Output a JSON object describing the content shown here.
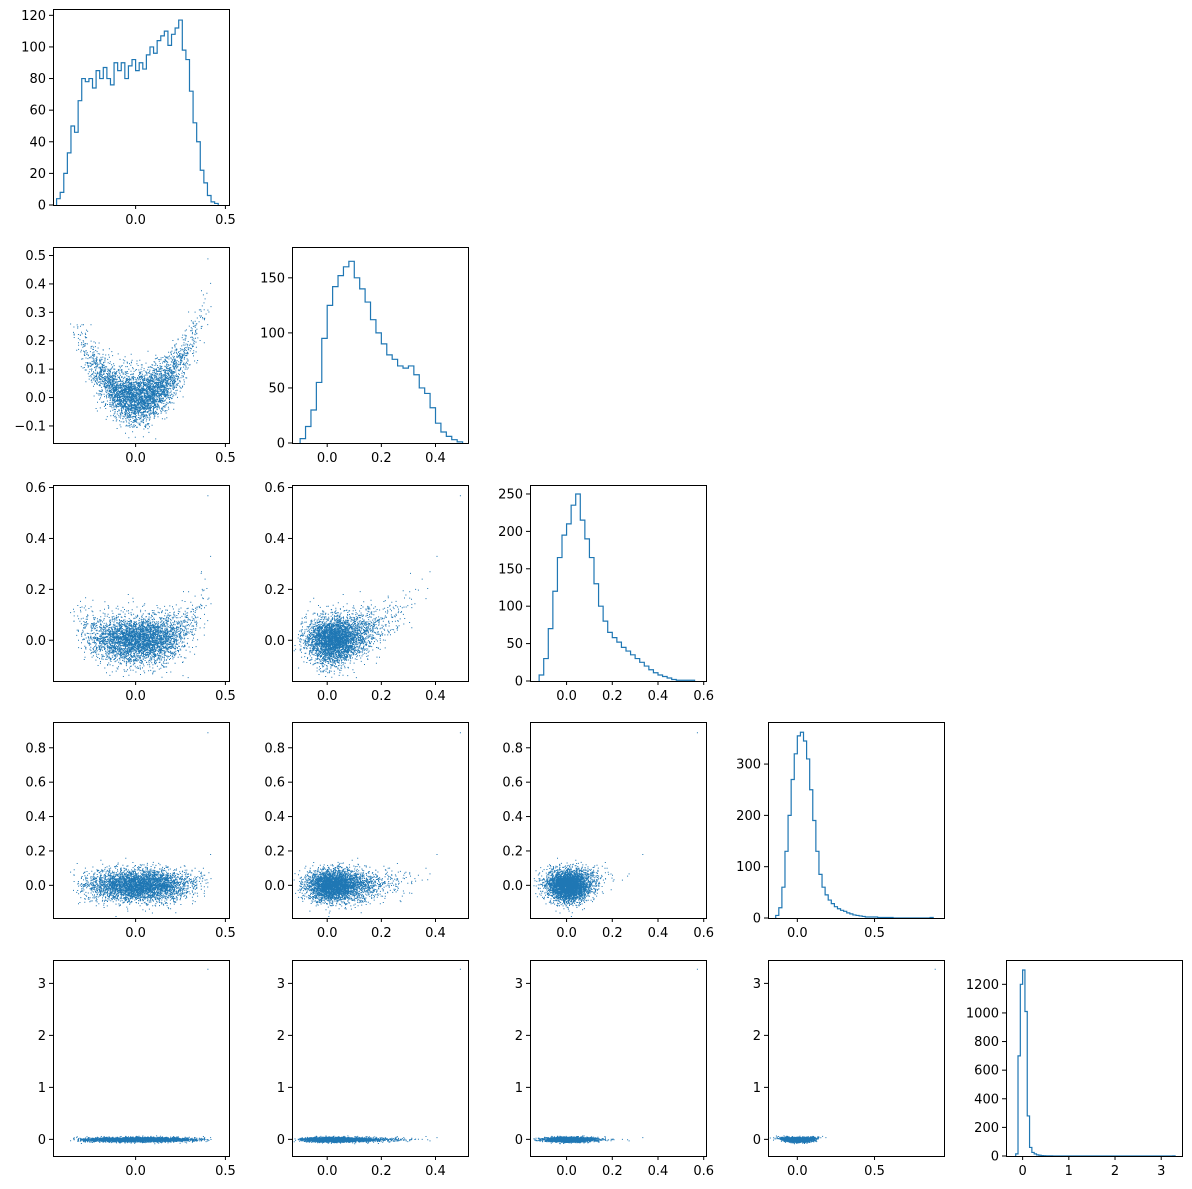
{
  "figure": {
    "type": "corner",
    "grid": false,
    "series_color": "#1f77b4",
    "n_vars": 5
  },
  "chart_data": [
    {
      "type": "histogram",
      "panel": "hist-0",
      "row": 0,
      "col": 0,
      "xlim": [
        -0.46,
        0.52
      ],
      "ylim": [
        0,
        124
      ],
      "xticks": [
        0.0,
        0.5
      ],
      "xtick_labels": [
        "0.0",
        "0.5"
      ],
      "yticks": [
        0,
        20,
        40,
        60,
        80,
        100,
        120
      ],
      "ytick_labels": [
        "0",
        "20",
        "40",
        "60",
        "80",
        "100",
        "120"
      ],
      "bins": [
        -0.44,
        -0.42,
        -0.4,
        -0.38,
        -0.36,
        -0.34,
        -0.32,
        -0.3,
        -0.28,
        -0.26,
        -0.24,
        -0.22,
        -0.2,
        -0.18,
        -0.16,
        -0.14,
        -0.12,
        -0.1,
        -0.08,
        -0.06,
        -0.04,
        -0.02,
        0.0,
        0.02,
        0.04,
        0.06,
        0.08,
        0.1,
        0.12,
        0.14,
        0.16,
        0.18,
        0.2,
        0.22,
        0.24,
        0.26,
        0.28,
        0.3,
        0.32,
        0.34,
        0.36,
        0.38,
        0.4,
        0.42,
        0.44,
        0.46
      ],
      "counts": [
        4,
        8,
        20,
        33,
        50,
        46,
        66,
        80,
        78,
        80,
        74,
        85,
        80,
        87,
        80,
        76,
        90,
        85,
        90,
        80,
        88,
        92,
        85,
        90,
        86,
        95,
        100,
        96,
        104,
        107,
        110,
        101,
        108,
        112,
        117,
        98,
        92,
        72,
        52,
        40,
        22,
        14,
        6,
        2,
        1
      ]
    },
    {
      "type": "scatter",
      "panel": "scatter-1-0",
      "row": 1,
      "col": 0,
      "xlim": [
        -0.46,
        0.52
      ],
      "ylim": [
        -0.16,
        0.53
      ],
      "xticks": [
        0.0,
        0.5
      ],
      "xtick_labels": [
        "0.0",
        "0.5"
      ],
      "yticks": [
        -0.1,
        0.0,
        0.1,
        0.2,
        0.3,
        0.4,
        0.5
      ],
      "ytick_labels": [
        "−0.1",
        "0.0",
        "0.1",
        "0.2",
        "0.3",
        "0.4",
        "0.5"
      ],
      "x_var": 0,
      "y_var": 1
    },
    {
      "type": "histogram",
      "panel": "hist-1",
      "row": 1,
      "col": 1,
      "xlim": [
        -0.13,
        0.52
      ],
      "ylim": [
        0,
        178
      ],
      "xticks": [
        0.0,
        0.2,
        0.4
      ],
      "xtick_labels": [
        "0.0",
        "0.2",
        "0.4"
      ],
      "yticks": [
        0,
        50,
        100,
        150
      ],
      "ytick_labels": [
        "0",
        "50",
        "100",
        "150"
      ],
      "bins": [
        -0.1,
        -0.08,
        -0.06,
        -0.04,
        -0.02,
        0.0,
        0.02,
        0.04,
        0.06,
        0.08,
        0.1,
        0.12,
        0.14,
        0.16,
        0.18,
        0.2,
        0.22,
        0.24,
        0.26,
        0.28,
        0.3,
        0.32,
        0.34,
        0.36,
        0.38,
        0.4,
        0.42,
        0.44,
        0.46,
        0.48,
        0.5
      ],
      "counts": [
        4,
        15,
        30,
        55,
        95,
        125,
        142,
        152,
        160,
        165,
        150,
        140,
        128,
        112,
        100,
        90,
        80,
        76,
        70,
        68,
        70,
        62,
        50,
        45,
        32,
        18,
        10,
        6,
        3,
        1
      ]
    },
    {
      "type": "scatter",
      "panel": "scatter-2-0",
      "row": 2,
      "col": 0,
      "xlim": [
        -0.46,
        0.52
      ],
      "ylim": [
        -0.16,
        0.61
      ],
      "xticks": [
        0.0,
        0.5
      ],
      "xtick_labels": [
        "0.0",
        "0.5"
      ],
      "yticks": [
        0.0,
        0.2,
        0.4,
        0.6
      ],
      "ytick_labels": [
        "0.0",
        "0.2",
        "0.4",
        "0.6"
      ],
      "x_var": 0,
      "y_var": 2
    },
    {
      "type": "scatter",
      "panel": "scatter-2-1",
      "row": 2,
      "col": 1,
      "xlim": [
        -0.13,
        0.52
      ],
      "ylim": [
        -0.16,
        0.61
      ],
      "xticks": [
        0.0,
        0.2,
        0.4
      ],
      "xtick_labels": [
        "0.0",
        "0.2",
        "0.4"
      ],
      "yticks": [
        0.0,
        0.2,
        0.4,
        0.6
      ],
      "ytick_labels": [
        "0.0",
        "0.2",
        "0.4",
        "0.6"
      ],
      "x_var": 1,
      "y_var": 2
    },
    {
      "type": "histogram",
      "panel": "hist-2",
      "row": 2,
      "col": 2,
      "xlim": [
        -0.16,
        0.61
      ],
      "ylim": [
        0,
        262
      ],
      "xticks": [
        0.0,
        0.2,
        0.4,
        0.6
      ],
      "xtick_labels": [
        "0.0",
        "0.2",
        "0.4",
        "0.6"
      ],
      "yticks": [
        0,
        50,
        100,
        150,
        200,
        250
      ],
      "ytick_labels": [
        "0",
        "50",
        "100",
        "150",
        "200",
        "250"
      ],
      "bins": [
        -0.12,
        -0.1,
        -0.08,
        -0.06,
        -0.04,
        -0.02,
        0.0,
        0.02,
        0.04,
        0.06,
        0.08,
        0.1,
        0.12,
        0.14,
        0.16,
        0.18,
        0.2,
        0.22,
        0.24,
        0.26,
        0.28,
        0.3,
        0.32,
        0.34,
        0.36,
        0.38,
        0.4,
        0.42,
        0.44,
        0.46,
        0.48,
        0.5,
        0.52,
        0.54,
        0.56
      ],
      "counts": [
        8,
        30,
        70,
        120,
        165,
        195,
        210,
        235,
        250,
        215,
        190,
        165,
        130,
        100,
        80,
        65,
        58,
        52,
        45,
        40,
        35,
        30,
        25,
        20,
        15,
        11,
        8,
        6,
        4,
        2,
        1,
        1,
        1,
        1
      ]
    },
    {
      "type": "scatter",
      "panel": "scatter-3-0",
      "row": 3,
      "col": 0,
      "xlim": [
        -0.46,
        0.52
      ],
      "ylim": [
        -0.19,
        0.95
      ],
      "xticks": [
        0.0,
        0.5
      ],
      "xtick_labels": [
        "0.0",
        "0.5"
      ],
      "yticks": [
        0.0,
        0.2,
        0.4,
        0.6,
        0.8
      ],
      "ytick_labels": [
        "0.0",
        "0.2",
        "0.4",
        "0.6",
        "0.8"
      ],
      "x_var": 0,
      "y_var": 3
    },
    {
      "type": "scatter",
      "panel": "scatter-3-1",
      "row": 3,
      "col": 1,
      "xlim": [
        -0.13,
        0.52
      ],
      "ylim": [
        -0.19,
        0.95
      ],
      "xticks": [
        0.0,
        0.2,
        0.4
      ],
      "xtick_labels": [
        "0.0",
        "0.2",
        "0.4"
      ],
      "yticks": [
        0.0,
        0.2,
        0.4,
        0.6,
        0.8
      ],
      "ytick_labels": [
        "0.0",
        "0.2",
        "0.4",
        "0.6",
        "0.8"
      ],
      "x_var": 1,
      "y_var": 3
    },
    {
      "type": "scatter",
      "panel": "scatter-3-2",
      "row": 3,
      "col": 2,
      "xlim": [
        -0.16,
        0.61
      ],
      "ylim": [
        -0.19,
        0.95
      ],
      "xticks": [
        0.0,
        0.2,
        0.4,
        0.6
      ],
      "xtick_labels": [
        "0.0",
        "0.2",
        "0.4",
        "0.6"
      ],
      "yticks": [
        0.0,
        0.2,
        0.4,
        0.6,
        0.8
      ],
      "ytick_labels": [
        "0.0",
        "0.2",
        "0.4",
        "0.6",
        "0.8"
      ],
      "x_var": 2,
      "y_var": 3
    },
    {
      "type": "histogram",
      "panel": "hist-3",
      "row": 3,
      "col": 3,
      "xlim": [
        -0.19,
        0.95
      ],
      "ylim": [
        0,
        382
      ],
      "xticks": [
        0.0,
        0.5
      ],
      "xtick_labels": [
        "0.0",
        "0.5"
      ],
      "yticks": [
        0,
        100,
        200,
        300
      ],
      "ytick_labels": [
        "0",
        "100",
        "200",
        "300"
      ],
      "bins": [
        -0.14,
        -0.12,
        -0.1,
        -0.08,
        -0.06,
        -0.04,
        -0.02,
        0.0,
        0.02,
        0.04,
        0.06,
        0.08,
        0.1,
        0.12,
        0.14,
        0.16,
        0.18,
        0.2,
        0.22,
        0.24,
        0.26,
        0.28,
        0.3,
        0.32,
        0.34,
        0.36,
        0.38,
        0.4,
        0.42,
        0.44,
        0.46,
        0.48,
        0.5,
        0.52,
        0.54,
        0.56,
        0.58,
        0.6,
        0.62,
        0.64,
        0.66,
        0.68,
        0.7,
        0.72,
        0.74,
        0.76,
        0.78,
        0.8,
        0.82,
        0.84,
        0.86,
        0.88
      ],
      "counts": [
        5,
        20,
        60,
        130,
        200,
        270,
        320,
        355,
        362,
        345,
        310,
        250,
        190,
        130,
        85,
        60,
        45,
        35,
        28,
        22,
        18,
        15,
        13,
        10,
        8,
        6,
        5,
        4,
        3,
        2,
        2,
        2,
        2,
        1,
        1,
        1,
        1,
        1,
        0,
        0,
        0,
        0,
        0,
        0,
        0,
        0,
        0,
        0,
        0,
        0,
        1
      ]
    },
    {
      "type": "scatter",
      "panel": "scatter-4-0",
      "row": 4,
      "col": 0,
      "xlim": [
        -0.46,
        0.52
      ],
      "ylim": [
        -0.32,
        3.45
      ],
      "xticks": [
        0.0,
        0.5
      ],
      "xtick_labels": [
        "0.0",
        "0.5"
      ],
      "yticks": [
        0,
        1,
        2,
        3
      ],
      "ytick_labels": [
        "0",
        "1",
        "2",
        "3"
      ],
      "x_var": 0,
      "y_var": 4
    },
    {
      "type": "scatter",
      "panel": "scatter-4-1",
      "row": 4,
      "col": 1,
      "xlim": [
        -0.13,
        0.52
      ],
      "ylim": [
        -0.32,
        3.45
      ],
      "xticks": [
        0.0,
        0.2,
        0.4
      ],
      "xtick_labels": [
        "0.0",
        "0.2",
        "0.4"
      ],
      "yticks": [
        0,
        1,
        2,
        3
      ],
      "ytick_labels": [
        "0",
        "1",
        "2",
        "3"
      ],
      "x_var": 1,
      "y_var": 4
    },
    {
      "type": "scatter",
      "panel": "scatter-4-2",
      "row": 4,
      "col": 2,
      "xlim": [
        -0.16,
        0.61
      ],
      "ylim": [
        -0.32,
        3.45
      ],
      "xticks": [
        0.0,
        0.2,
        0.4,
        0.6
      ],
      "xtick_labels": [
        "0.0",
        "0.2",
        "0.4",
        "0.6"
      ],
      "yticks": [
        0,
        1,
        2,
        3
      ],
      "ytick_labels": [
        "0",
        "1",
        "2",
        "3"
      ],
      "x_var": 2,
      "y_var": 4
    },
    {
      "type": "scatter",
      "panel": "scatter-4-3",
      "row": 4,
      "col": 3,
      "xlim": [
        -0.19,
        0.95
      ],
      "ylim": [
        -0.32,
        3.45
      ],
      "xticks": [
        0.0,
        0.5
      ],
      "xtick_labels": [
        "0.0",
        "0.5"
      ],
      "yticks": [
        0,
        1,
        2,
        3
      ],
      "ytick_labels": [
        "0",
        "1",
        "2",
        "3"
      ],
      "x_var": 3,
      "y_var": 4
    },
    {
      "type": "histogram",
      "panel": "hist-4",
      "row": 4,
      "col": 4,
      "xlim": [
        -0.36,
        3.45
      ],
      "ylim": [
        0,
        1370
      ],
      "xticks": [
        0,
        1,
        2,
        3
      ],
      "xtick_labels": [
        "0",
        "1",
        "2",
        "3"
      ],
      "yticks": [
        0,
        200,
        400,
        600,
        800,
        1000,
        1200
      ],
      "ytick_labels": [
        "0",
        "200",
        "400",
        "600",
        "800",
        "1000",
        "1200"
      ],
      "bins": [
        -0.15,
        -0.1,
        -0.05,
        0.0,
        0.05,
        0.1,
        0.15,
        0.2,
        0.25,
        0.3,
        0.35,
        0.4,
        0.45,
        0.5,
        0.55,
        0.6,
        0.65,
        0.7,
        0.75,
        0.8,
        0.85,
        0.9,
        0.95,
        1.0,
        1.05,
        1.1,
        1.15,
        1.2,
        1.25,
        1.3,
        1.35,
        1.4,
        1.45,
        1.5,
        1.55,
        1.6,
        1.65,
        1.7,
        1.75,
        1.8,
        1.85,
        1.9,
        1.95,
        2.0,
        2.05,
        2.1,
        2.15,
        2.2,
        2.25,
        2.3,
        2.35,
        2.4,
        2.45,
        2.5,
        2.55,
        2.6,
        2.65,
        2.7,
        2.75,
        2.8,
        2.85,
        2.9,
        2.95,
        3.0,
        3.05,
        3.1,
        3.15,
        3.2,
        3.25,
        3.3
      ],
      "counts": [
        15,
        700,
        1200,
        1300,
        1010,
        280,
        60,
        25,
        15,
        8,
        5,
        3,
        2,
        1,
        1,
        1,
        0,
        0,
        0,
        0,
        0,
        0,
        0,
        0,
        0,
        0,
        0,
        0,
        0,
        0,
        0,
        0,
        0,
        0,
        0,
        0,
        0,
        0,
        0,
        0,
        0,
        0,
        0,
        0,
        0,
        0,
        0,
        0,
        0,
        0,
        0,
        0,
        0,
        0,
        0,
        0,
        0,
        0,
        0,
        0,
        0,
        0,
        0,
        0,
        0,
        0,
        0,
        0,
        1
      ]
    }
  ]
}
